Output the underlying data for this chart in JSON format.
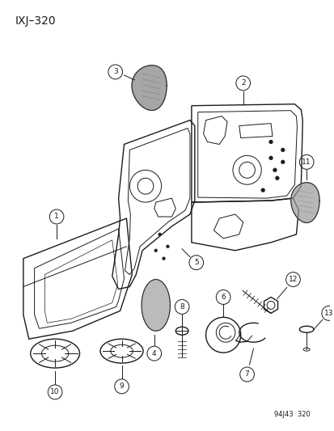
{
  "title": "IXJ–320",
  "footer": "94J43  320",
  "bg_color": "#ffffff",
  "line_color": "#1a1a1a",
  "figsize": [
    4.14,
    5.33
  ],
  "dpi": 100
}
